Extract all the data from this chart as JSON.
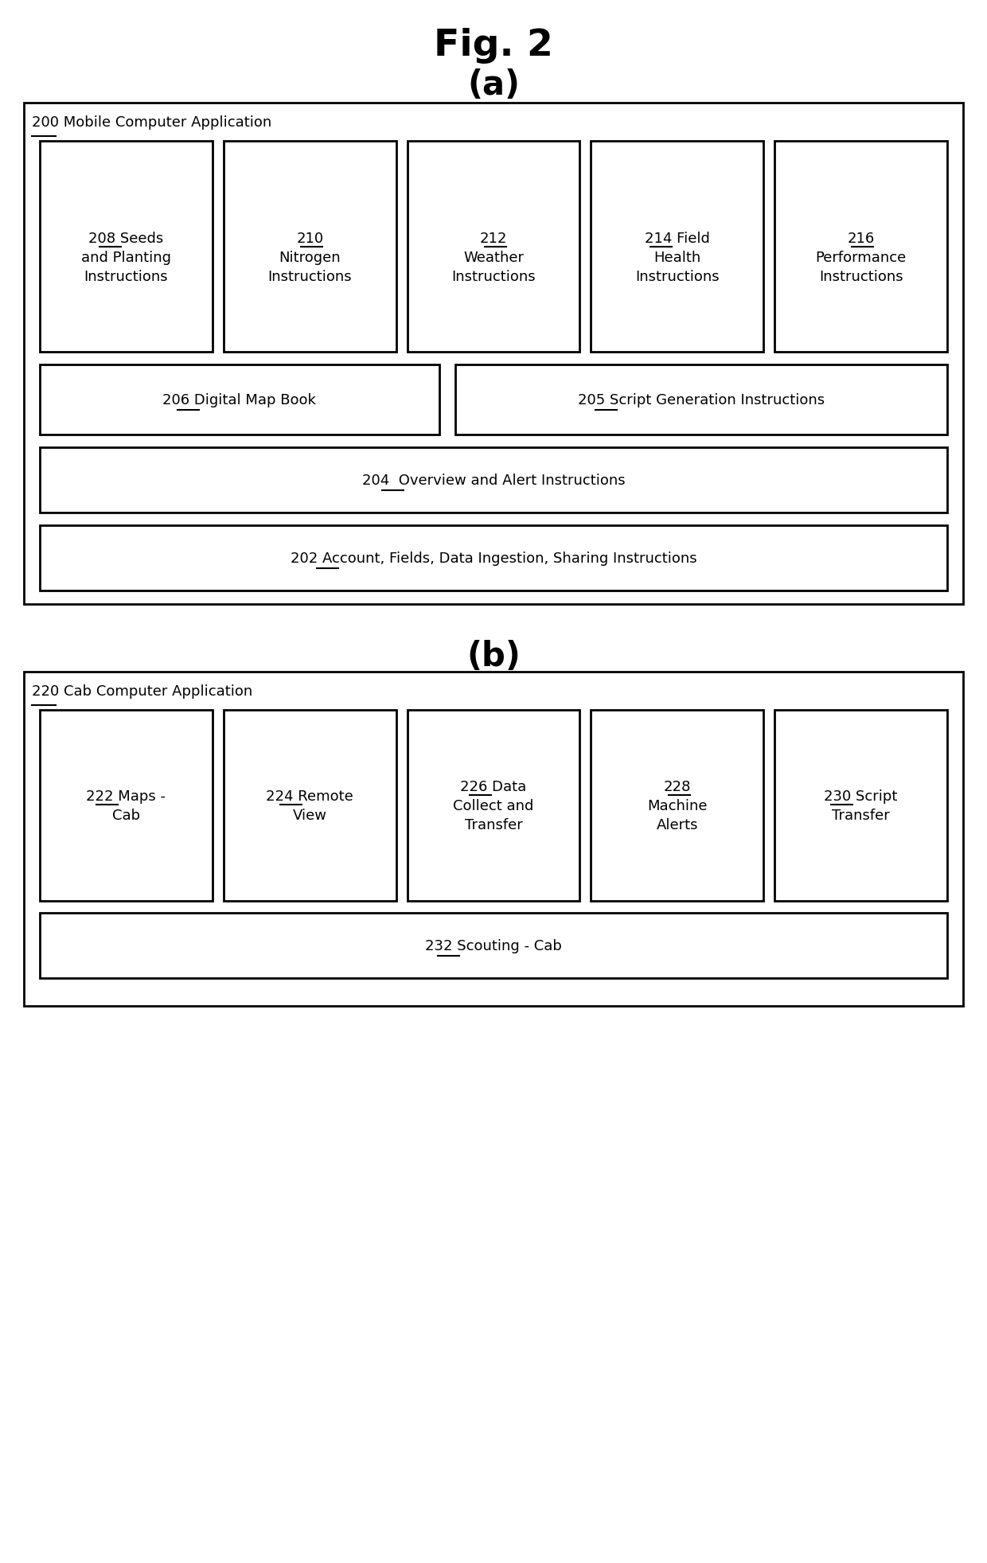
{
  "fig_title": "Fig. 2",
  "subtitle_a": "(a)",
  "subtitle_b": "(b)",
  "bg_color": "#ffffff",
  "section_a": {
    "outer_label": "200 Mobile Computer Application",
    "outer_label_num": "200",
    "top_boxes": [
      {
        "id": "208",
        "lines": [
          "208 Seeds",
          "and Planting",
          "Instructions"
        ],
        "num": "208"
      },
      {
        "id": "210",
        "lines": [
          "210",
          "Nitrogen",
          "Instructions"
        ],
        "num": "210"
      },
      {
        "id": "212",
        "lines": [
          "212",
          "Weather",
          "Instructions"
        ],
        "num": "212"
      },
      {
        "id": "214",
        "lines": [
          "214 Field",
          "Health",
          "Instructions"
        ],
        "num": "214"
      },
      {
        "id": "216",
        "lines": [
          "216",
          "Performance",
          "Instructions"
        ],
        "num": "216"
      }
    ],
    "mid_boxes": [
      {
        "id": "206",
        "label": "206 Digital Map Book",
        "num": "206",
        "num_chars": 3
      },
      {
        "id": "205",
        "label": "205 Script Generation Instructions",
        "num": "205",
        "num_chars": 3
      }
    ],
    "bottom_boxes": [
      {
        "id": "204",
        "label": "204  Overview and Alert Instructions",
        "num": "204",
        "num_chars": 3
      },
      {
        "id": "202",
        "label": "202 Account, Fields, Data Ingestion, Sharing Instructions",
        "num": "202",
        "num_chars": 3
      }
    ]
  },
  "section_b": {
    "outer_label": "220 Cab Computer Application",
    "outer_label_num": "220",
    "top_boxes": [
      {
        "id": "222",
        "lines": [
          "222 Maps -",
          "Cab"
        ],
        "num": "222"
      },
      {
        "id": "224",
        "lines": [
          "224 Remote",
          "View"
        ],
        "num": "224"
      },
      {
        "id": "226",
        "lines": [
          "226 Data",
          "Collect and",
          "Transfer"
        ],
        "num": "226"
      },
      {
        "id": "228",
        "lines": [
          "228",
          "Machine",
          "Alerts"
        ],
        "num": "228"
      },
      {
        "id": "230",
        "lines": [
          "230 Script",
          "Transfer"
        ],
        "num": "230"
      }
    ],
    "bottom_boxes": [
      {
        "id": "232",
        "label": "232 Scouting - Cab",
        "num": "232",
        "num_chars": 3
      }
    ]
  }
}
